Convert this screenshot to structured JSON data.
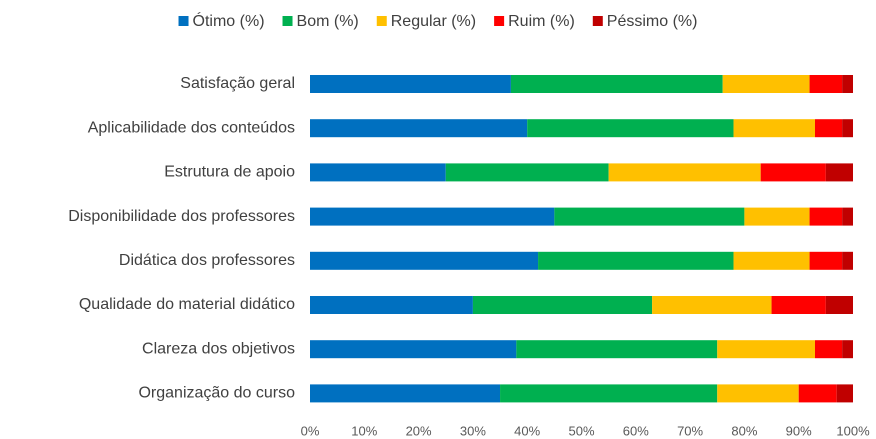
{
  "chart_data": {
    "type": "stacked_barh",
    "categories": [
      "Satisfação geral",
      "Aplicabilidade dos conteúdos",
      "Estrutura de apoio",
      "Disponibilidade dos professores",
      "Didática dos professores",
      "Qualidade do material didático",
      "Clareza dos objetivos",
      "Organização do curso"
    ],
    "series": [
      {
        "name": "Ótimo (%)",
        "color": "#0070c0",
        "values": [
          37,
          40,
          25,
          45,
          42,
          30,
          38,
          35
        ]
      },
      {
        "name": "Bom (%)",
        "color": "#00b050",
        "values": [
          39,
          38,
          30,
          35,
          36,
          33,
          37,
          40
        ]
      },
      {
        "name": "Regular (%)",
        "color": "#ffc000",
        "values": [
          16,
          15,
          28,
          12,
          14,
          22,
          18,
          15
        ]
      },
      {
        "name": "Ruim (%)",
        "color": "#ff0000",
        "values": [
          6,
          5,
          12,
          6,
          6,
          10,
          5,
          7
        ]
      },
      {
        "name": "Péssimo (%)",
        "color": "#c00000",
        "values": [
          2,
          2,
          5,
          2,
          2,
          5,
          2,
          3
        ]
      }
    ],
    "xlim": [
      0,
      100
    ],
    "xticks": [
      {
        "value": 0,
        "label": "0%"
      },
      {
        "value": 10,
        "label": "10%"
      },
      {
        "value": 20,
        "label": "20%"
      },
      {
        "value": 30,
        "label": "30%"
      },
      {
        "value": 40,
        "label": "40%"
      },
      {
        "value": 50,
        "label": "50%"
      },
      {
        "value": 60,
        "label": "60%"
      },
      {
        "value": 70,
        "label": "70%"
      },
      {
        "value": 80,
        "label": "80%"
      },
      {
        "value": 90,
        "label": "90%"
      },
      {
        "value": 100,
        "label": "100%"
      }
    ],
    "legend": "top"
  }
}
